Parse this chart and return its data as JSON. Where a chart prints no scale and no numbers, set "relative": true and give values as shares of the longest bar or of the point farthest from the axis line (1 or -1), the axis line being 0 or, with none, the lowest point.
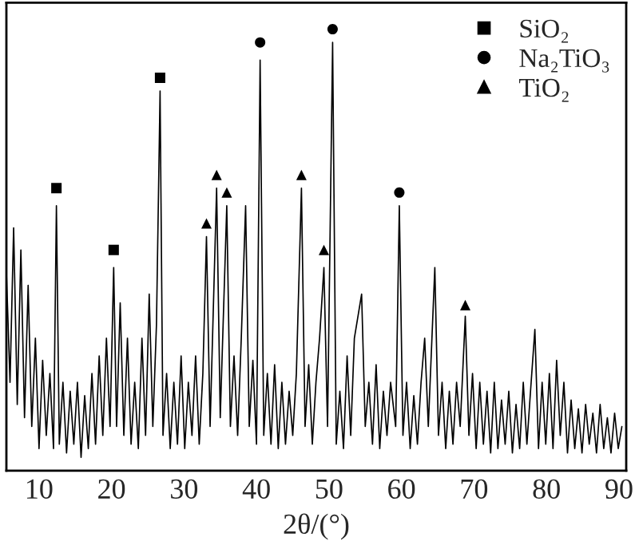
{
  "chart_data": {
    "type": "line",
    "xlabel": "2θ/(°)",
    "relative": true,
    "tick_labels": "x",
    "grid": false,
    "legend": "top right",
    "xlim": [
      5.5,
      91
    ],
    "xticks": [
      10,
      20,
      30,
      40,
      50,
      60,
      70,
      80,
      90
    ],
    "series": [
      {
        "color": "#000000",
        "marker": "none",
        "line_style": "solid",
        "x": [
          5.5,
          6,
          6.5,
          7,
          7.5,
          8,
          8.5,
          9,
          9.5,
          10,
          10.5,
          11,
          11.5,
          12,
          12.4,
          12.8,
          13.3,
          13.8,
          14.3,
          14.8,
          15.3,
          15.8,
          16.3,
          16.8,
          17.3,
          17.8,
          18.3,
          18.8,
          19.3,
          19.8,
          20.3,
          20.7,
          21.2,
          21.7,
          22.2,
          22.7,
          23.2,
          23.7,
          24.2,
          24.7,
          25.2,
          25.7,
          26.2,
          26.7,
          27.1,
          27.6,
          28.1,
          28.6,
          29.1,
          29.6,
          30.1,
          30.6,
          31.1,
          31.6,
          32.1,
          32.6,
          33.1,
          33.6,
          34.5,
          35,
          35.9,
          36.4,
          36.9,
          37.4,
          37.9,
          38.5,
          39,
          39.5,
          40,
          40.5,
          41,
          41.5,
          42,
          42.5,
          43,
          43.5,
          44,
          44.5,
          45,
          45.5,
          46.2,
          46.7,
          47.2,
          47.7,
          48.2,
          48.7,
          49.3,
          49.8,
          50.5,
          51,
          51.5,
          52,
          52.5,
          53,
          53.5,
          54.5,
          55,
          55.5,
          56,
          56.5,
          57,
          57.5,
          58,
          58.5,
          59.2,
          59.7,
          60.2,
          60.7,
          61.2,
          61.7,
          62.2,
          62.7,
          63.2,
          63.7,
          64.6,
          65.1,
          65.6,
          66.1,
          66.6,
          67.1,
          67.6,
          68.1,
          68.8,
          69.3,
          69.8,
          70.3,
          70.8,
          71.3,
          71.8,
          72.3,
          72.8,
          73.3,
          73.8,
          74.3,
          74.8,
          75.3,
          75.8,
          76.3,
          76.8,
          77.3,
          77.8,
          78.4,
          78.9,
          79.4,
          79.9,
          80.4,
          80.9,
          81.4,
          81.9,
          82.4,
          82.9,
          83.4,
          83.9,
          84.4,
          84.9,
          85.4,
          85.9,
          86.4,
          86.9,
          87.4,
          87.9,
          88.4,
          88.9,
          89.4,
          89.9,
          90.4
        ],
        "values": [
          0.45,
          0.2,
          0.55,
          0.15,
          0.5,
          0.12,
          0.42,
          0.1,
          0.3,
          0.05,
          0.25,
          0.08,
          0.22,
          0.05,
          0.6,
          0.06,
          0.2,
          0.04,
          0.18,
          0.06,
          0.2,
          0.03,
          0.17,
          0.05,
          0.22,
          0.06,
          0.26,
          0.08,
          0.3,
          0.1,
          0.46,
          0.1,
          0.38,
          0.08,
          0.3,
          0.06,
          0.2,
          0.05,
          0.3,
          0.08,
          0.4,
          0.1,
          0.33,
          0.86,
          0.08,
          0.22,
          0.05,
          0.2,
          0.06,
          0.26,
          0.05,
          0.2,
          0.08,
          0.26,
          0.06,
          0.22,
          0.53,
          0.1,
          0.64,
          0.12,
          0.6,
          0.1,
          0.26,
          0.08,
          0.3,
          0.6,
          0.1,
          0.25,
          0.06,
          0.93,
          0.08,
          0.22,
          0.06,
          0.24,
          0.05,
          0.2,
          0.06,
          0.18,
          0.08,
          0.22,
          0.64,
          0.1,
          0.24,
          0.06,
          0.2,
          0.3,
          0.46,
          0.1,
          0.97,
          0.06,
          0.18,
          0.05,
          0.26,
          0.08,
          0.3,
          0.4,
          0.1,
          0.2,
          0.06,
          0.24,
          0.05,
          0.18,
          0.08,
          0.2,
          0.1,
          0.6,
          0.08,
          0.2,
          0.05,
          0.17,
          0.06,
          0.2,
          0.3,
          0.1,
          0.46,
          0.08,
          0.2,
          0.05,
          0.18,
          0.06,
          0.2,
          0.1,
          0.35,
          0.08,
          0.22,
          0.05,
          0.2,
          0.06,
          0.18,
          0.04,
          0.2,
          0.05,
          0.16,
          0.06,
          0.18,
          0.04,
          0.15,
          0.05,
          0.2,
          0.06,
          0.18,
          0.32,
          0.05,
          0.2,
          0.06,
          0.22,
          0.05,
          0.25,
          0.08,
          0.2,
          0.04,
          0.16,
          0.05,
          0.14,
          0.04,
          0.15,
          0.06,
          0.13,
          0.04,
          0.15,
          0.05,
          0.12,
          0.04,
          0.13,
          0.05,
          0.1
        ]
      },
      {
        "type": "scatter",
        "name": "SiO₂",
        "color": "#000000",
        "marker": "square",
        "x": [
          12.4,
          20.3,
          26.7
        ],
        "values": [
          0.64,
          0.5,
          0.89
        ]
      },
      {
        "type": "scatter",
        "name": "Na₂TiO₃",
        "color": "#000000",
        "marker": "circle",
        "x": [
          40.5,
          50.5,
          59.7
        ],
        "values": [
          0.97,
          1.0,
          0.63
        ]
      },
      {
        "type": "scatter",
        "name": "TiO₂",
        "color": "#000000",
        "marker": "triangle",
        "x": [
          33.1,
          34.5,
          35.9,
          46.2,
          49.3,
          68.8
        ],
        "values": [
          0.56,
          0.67,
          0.63,
          0.67,
          0.5,
          0.375
        ]
      }
    ]
  }
}
